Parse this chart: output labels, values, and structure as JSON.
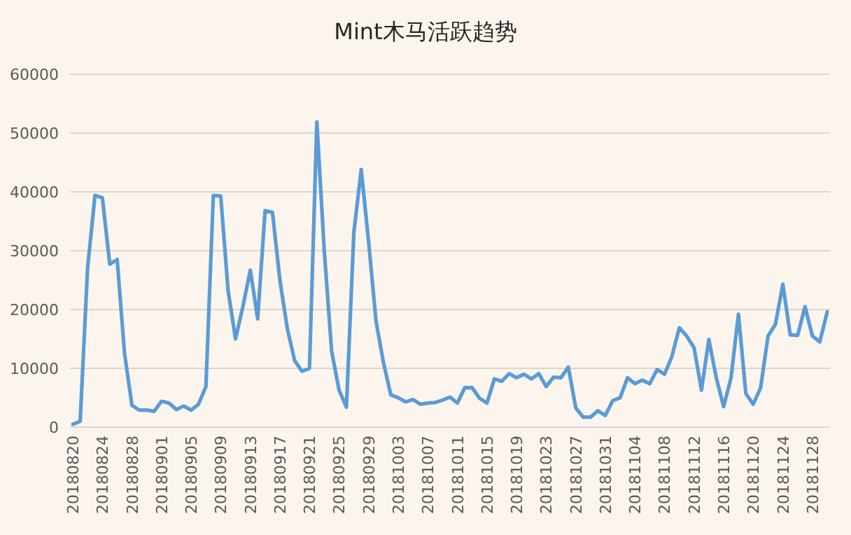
{
  "chart_data": {
    "type": "line",
    "title": "Mint木马活跃趋势",
    "categories": [
      "20180820",
      null,
      null,
      null,
      "20180824",
      null,
      null,
      null,
      "20180828",
      null,
      null,
      null,
      "20180901",
      null,
      null,
      null,
      "20180905",
      null,
      null,
      null,
      "20180909",
      null,
      null,
      null,
      "20180913",
      null,
      null,
      null,
      "20180917",
      null,
      null,
      null,
      "20180921",
      null,
      null,
      null,
      "20180925",
      null,
      null,
      null,
      "20180929",
      null,
      null,
      null,
      "20181003",
      null,
      null,
      null,
      "20181007",
      null,
      null,
      null,
      "20181011",
      null,
      null,
      null,
      "20181015",
      null,
      null,
      null,
      "20181019",
      null,
      null,
      null,
      "20181023",
      null,
      null,
      null,
      "20181027",
      null,
      null,
      null,
      "20181031",
      null,
      null,
      null,
      "20181104",
      null,
      null,
      null,
      "20181108",
      null,
      null,
      null,
      "20181112",
      null,
      null,
      null,
      "20181116",
      null,
      null,
      null,
      "20181120",
      null,
      null,
      null,
      "20181124",
      null,
      null,
      null,
      "20181128",
      null,
      null
    ],
    "series": [
      {
        "color": "#5b9bd5",
        "values": [
          500,
          1000,
          27000,
          39400,
          39000,
          27700,
          28500,
          12500,
          3700,
          2900,
          2900,
          2700,
          4400,
          4100,
          3000,
          3600,
          2900,
          3900,
          6900,
          39400,
          39300,
          23200,
          15000,
          20500,
          26700,
          18400,
          36800,
          36500,
          25000,
          16800,
          11300,
          9500,
          10000,
          51900,
          30000,
          12900,
          6300,
          3400,
          33100,
          43800,
          31500,
          18000,
          11000,
          5500,
          5000,
          4300,
          4700,
          3900,
          4100,
          4200,
          4600,
          5100,
          4100,
          6700,
          6700,
          4900,
          4100,
          8200,
          7800,
          9100,
          8400,
          9000,
          8200,
          9100,
          6900,
          8500,
          8400,
          10200,
          3300,
          1700,
          1700,
          2800,
          2000,
          4500,
          5000,
          8400,
          7400,
          8000,
          7400,
          9800,
          9000,
          12000,
          16900,
          15500,
          13500,
          6300,
          14900,
          8400,
          3500,
          8400,
          19200,
          5700,
          3900,
          6700,
          15500,
          17500,
          24300,
          15700,
          15600,
          20500,
          15500,
          14500,
          19600
        ]
      }
    ],
    "ylim": [
      0,
      60000
    ],
    "yticks": [
      0,
      10000,
      20000,
      30000,
      40000,
      50000,
      60000
    ],
    "grid": "y",
    "marker": "none",
    "line_style": "solid"
  }
}
